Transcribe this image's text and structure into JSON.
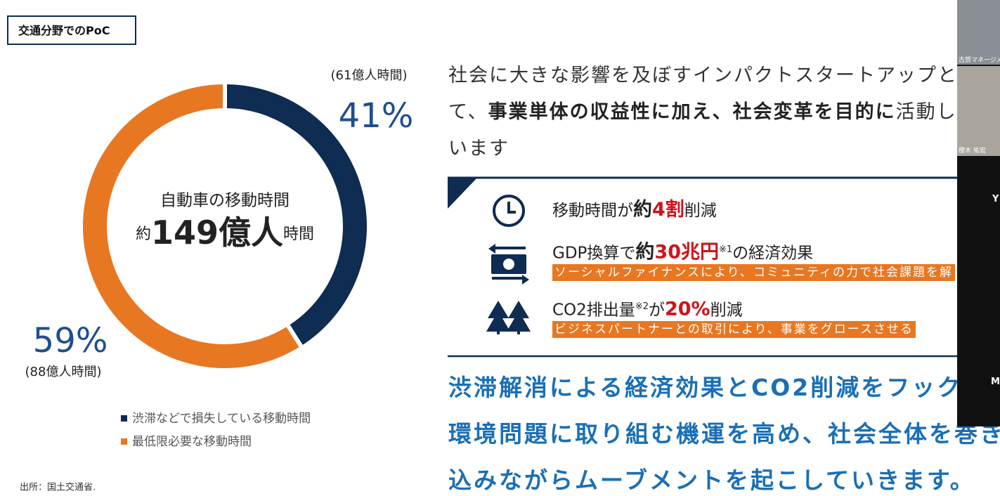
{
  "header": {
    "title": "交通分野でのPoC"
  },
  "chart_data": {
    "type": "pie",
    "donut": true,
    "categories": [
      "渋滞などで損失している移動時間",
      "最低限必要な移動時間"
    ],
    "values": [
      41,
      59
    ],
    "value_labels": [
      "41%",
      "59%"
    ],
    "sub_labels": [
      "(61億人時間)",
      "(88億人時間)"
    ],
    "colors": [
      "#0f2c52",
      "#e87722"
    ],
    "center_text": {
      "line1": "自動車の移動時間",
      "prefix": "約",
      "main": "149億人",
      "suffix": "時間"
    }
  },
  "source": "出所：国土交通省.",
  "paragraph": [
    [
      {
        "text": "社会に大きな影響を及ぼすインパクトスタートアップと",
        "style": "normal"
      }
    ],
    [
      {
        "text": "て、",
        "style": "normal"
      },
      {
        "text": "事業単体の収益性に加え、社会変革を目的に",
        "style": "bold"
      },
      {
        "text": "活動し",
        "style": "normal"
      }
    ],
    [
      {
        "text": "います",
        "style": "normal"
      }
    ]
  ],
  "items": [
    {
      "runs": [
        {
          "text": "移動時間が",
          "style": "normal"
        },
        {
          "text": "約",
          "style": "bold"
        },
        {
          "text": "4割",
          "style": "red"
        },
        {
          "text": "削減",
          "style": "normal"
        }
      ]
    },
    {
      "runs": [
        {
          "text": "GDP換算で",
          "style": "normal"
        },
        {
          "text": "約",
          "style": "bold"
        },
        {
          "text": "30兆円",
          "style": "red"
        },
        {
          "text": "※1",
          "style": "sup"
        },
        {
          "text": "の経済効果",
          "style": "normal"
        }
      ],
      "caption": "ソーシャルファイナンスにより、コミュニティの力で社会課題を解"
    },
    {
      "runs": [
        {
          "text": "CO2排出量",
          "style": "normal"
        },
        {
          "text": "※2",
          "style": "sup"
        },
        {
          "text": "が",
          "style": "normal"
        },
        {
          "text": "20%",
          "style": "red"
        },
        {
          "text": "削減",
          "style": "normal"
        }
      ],
      "caption": "ビジネスパートナーとの取引により、事業をグロースさせる"
    }
  ],
  "message": [
    "渋滞解消による経済効果とCO2削減をフック",
    "環境問題に取り組む機運を高め、社会全体を巻き",
    "込みながらムーブメントを起こしていきます。"
  ],
  "video": {
    "participants": [
      "古賀マネージメ",
      "櫻木 祐宏"
    ],
    "initials": [
      "Y",
      "M"
    ]
  }
}
